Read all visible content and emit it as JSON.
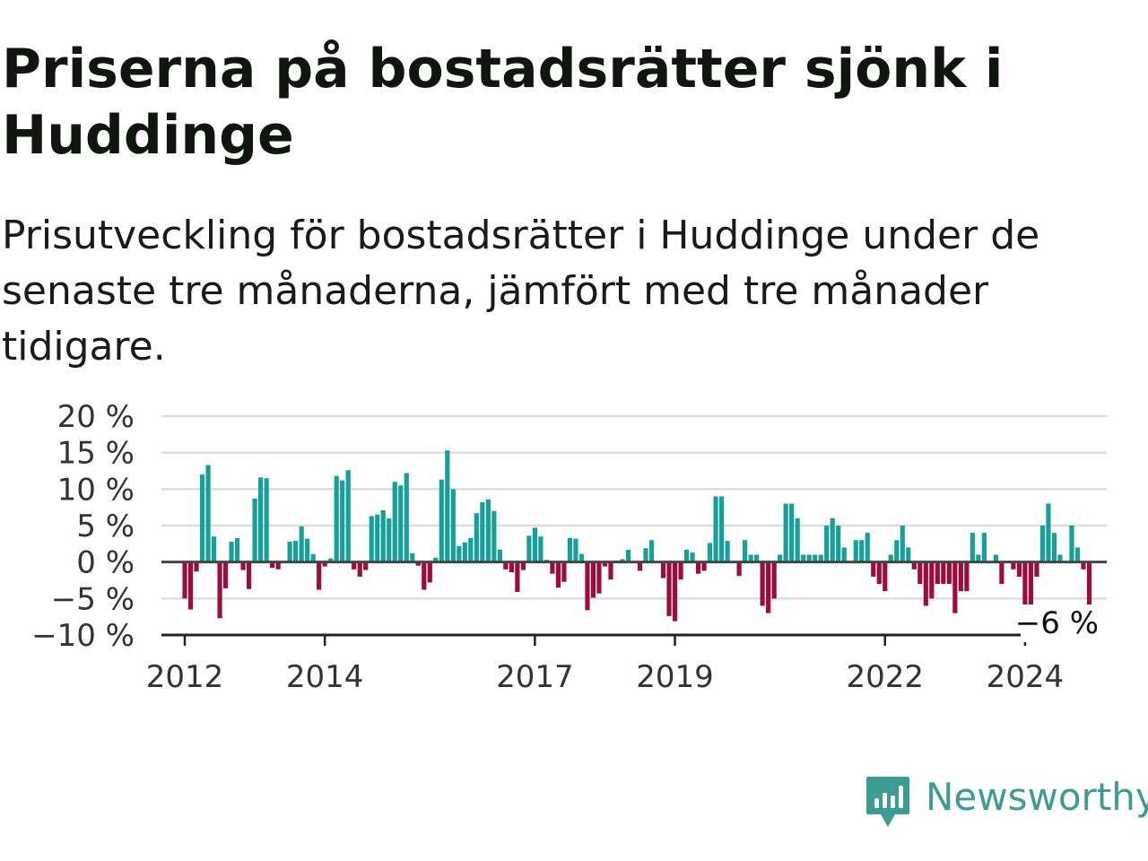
{
  "title": "Priserna på bostadsrätter sjönk i Huddinge",
  "subtitle": "Prisutveckling för bostadsrätter i Huddinge under de senaste tre månaderna, jämfört med tre månader tidigare.",
  "brand": {
    "name": "Newsworthy",
    "color": "#3a9c93"
  },
  "colors": {
    "positive": "#16a09a",
    "negative": "#9e0b3e",
    "grid": "#dddddd",
    "zero_line": "#444444"
  },
  "chart_data": {
    "type": "bar",
    "title": "Priserna på bostadsrätter sjönk i Huddinge",
    "subtitle": "Prisutveckling för bostadsrätter i Huddinge under de senaste tre månaderna, jämfört med tre månader tidigare.",
    "x_start": "2011-09",
    "x_end": "2025-03",
    "y_ticks": [
      "20 %",
      "15 %",
      "10 %",
      "5 %",
      "0 %",
      "−5 %",
      "−10 %"
    ],
    "y_tick_values": [
      20,
      15,
      10,
      5,
      0,
      -5,
      -10
    ],
    "ylim": [
      -10,
      20
    ],
    "x_ticks": [
      {
        "label": "2012",
        "date": "2012-01"
      },
      {
        "label": "2014",
        "date": "2014-01"
      },
      {
        "label": "2017",
        "date": "2017-01"
      },
      {
        "label": "2019",
        "date": "2019-01"
      },
      {
        "label": "2022",
        "date": "2022-01"
      },
      {
        "label": "2024",
        "date": "2024-01"
      }
    ],
    "last_value_label": "−6 %",
    "grid": true,
    "legend": "none",
    "series": [
      {
        "start": "2012-01",
        "values": [
          -5,
          -6.5,
          -1.3,
          12,
          13.3,
          3.5,
          -7.7,
          -3.6,
          2.8,
          3.3,
          -1.1,
          -3.7,
          8.7,
          11.6,
          11.5,
          -0.8,
          -1,
          0,
          2.8,
          2.9,
          4.9,
          3.2,
          1.1,
          -3.8,
          -0.6,
          0.5,
          11.8,
          11.2,
          12.6,
          -1,
          -2,
          -1.1,
          6.3,
          6.5,
          7.1,
          6,
          11,
          10.5,
          12.2,
          1.2,
          -0.5,
          -3.8,
          -2.8,
          0.6,
          11.3,
          15.3,
          10,
          2.2,
          2.7,
          3.3,
          6.7,
          8.2,
          8.6,
          7,
          1.7,
          -1,
          -1.4,
          -4.1,
          -1.1,
          3.6,
          4.7,
          3.5,
          0.3,
          -1.6,
          -3.5,
          -2.7,
          3.3,
          3.2,
          1.1,
          -6.6,
          -4.9,
          -4.3,
          -0.6,
          -2.4,
          0.2,
          0.4,
          1.7,
          0.1,
          -1.2,
          1.9,
          3,
          0,
          -2.2,
          -7.4,
          -8.1,
          -2.4,
          1.7,
          1.3,
          -1.6,
          -1.2,
          2.6,
          9,
          9,
          2.9,
          0,
          -1.9,
          3,
          1,
          1,
          -6,
          -7,
          -5,
          1,
          8,
          8,
          6,
          1,
          1,
          1,
          1,
          5,
          6,
          5,
          2,
          0,
          3,
          3,
          4,
          -2,
          -3,
          -4,
          1,
          3,
          5,
          2,
          -1,
          -3,
          -6,
          -5,
          -3,
          -3,
          -3,
          -7,
          -4,
          -4,
          4,
          1,
          4,
          0,
          1,
          -3,
          0,
          -1,
          -2,
          -7,
          -7,
          -2,
          5,
          8,
          4,
          1,
          0,
          5,
          2,
          -1,
          -6
        ]
      }
    ]
  }
}
